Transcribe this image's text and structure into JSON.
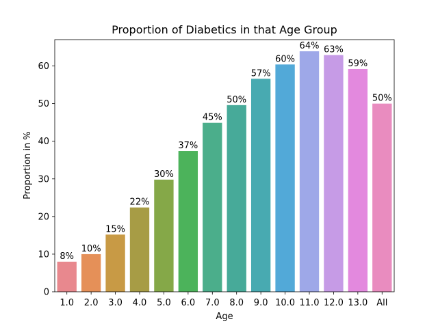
{
  "chart_data": {
    "type": "bar",
    "title": "Proportion of Diabetics in that Age Group",
    "xlabel": "Age",
    "ylabel": "Proportion in %",
    "categories": [
      "1.0",
      "2.0",
      "3.0",
      "4.0",
      "5.0",
      "6.0",
      "7.0",
      "8.0",
      "9.0",
      "10.0",
      "11.0",
      "12.0",
      "13.0",
      "All"
    ],
    "values": [
      8.0,
      10.0,
      15.2,
      22.4,
      29.8,
      37.4,
      44.9,
      49.6,
      56.6,
      60.4,
      63.9,
      62.9,
      59.2,
      50.0
    ],
    "data_labels": [
      "8%",
      "10%",
      "15%",
      "22%",
      "30%",
      "37%",
      "45%",
      "50%",
      "57%",
      "60%",
      "64%",
      "63%",
      "59%",
      "50%"
    ],
    "colors": [
      "#e8888e",
      "#e59058",
      "#c89a45",
      "#a79c45",
      "#85a848",
      "#4cb35b",
      "#4bae8b",
      "#47aa99",
      "#48aab1",
      "#52a9d8",
      "#9ea8e8",
      "#c69be6",
      "#e389de",
      "#e98cbf"
    ],
    "ylim": [
      0,
      67
    ],
    "yticks": [
      0,
      10,
      20,
      30,
      40,
      50,
      60
    ],
    "grid": false,
    "legend": "none"
  }
}
